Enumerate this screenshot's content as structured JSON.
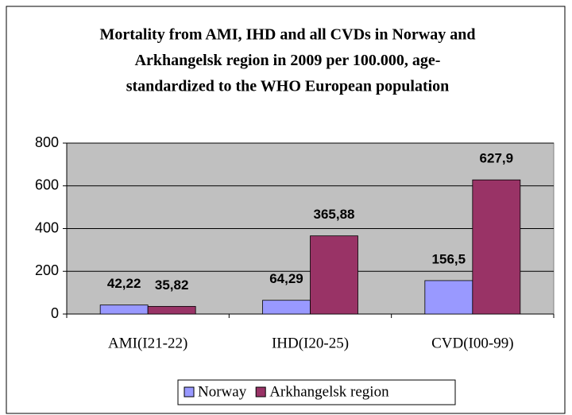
{
  "chart_data": {
    "type": "bar",
    "title": [
      "Mortality  from AMI, IHD and all CVDs in Norway and",
      "Arkhangelsk region in 2009 per 100.000, age-",
      "standardized to the WHO European population"
    ],
    "categories": [
      "AMI(I21-22)",
      "IHD(I20-25)",
      "CVD(I00-99)"
    ],
    "series": [
      {
        "name": "Norway",
        "color": "#9999ff",
        "values": [
          42.22,
          64.29,
          156.5
        ],
        "value_labels": [
          "42,22",
          "64,29",
          "156,5"
        ]
      },
      {
        "name": "Arkhangelsk region",
        "color": "#993366",
        "values": [
          35.82,
          365.88,
          627.9
        ],
        "value_labels": [
          "35,82",
          "365,88",
          "627,9"
        ]
      }
    ],
    "ylim": [
      0,
      800
    ],
    "yticks": [
      0,
      200,
      400,
      600,
      800
    ],
    "grid": true,
    "legend": "bottom"
  }
}
